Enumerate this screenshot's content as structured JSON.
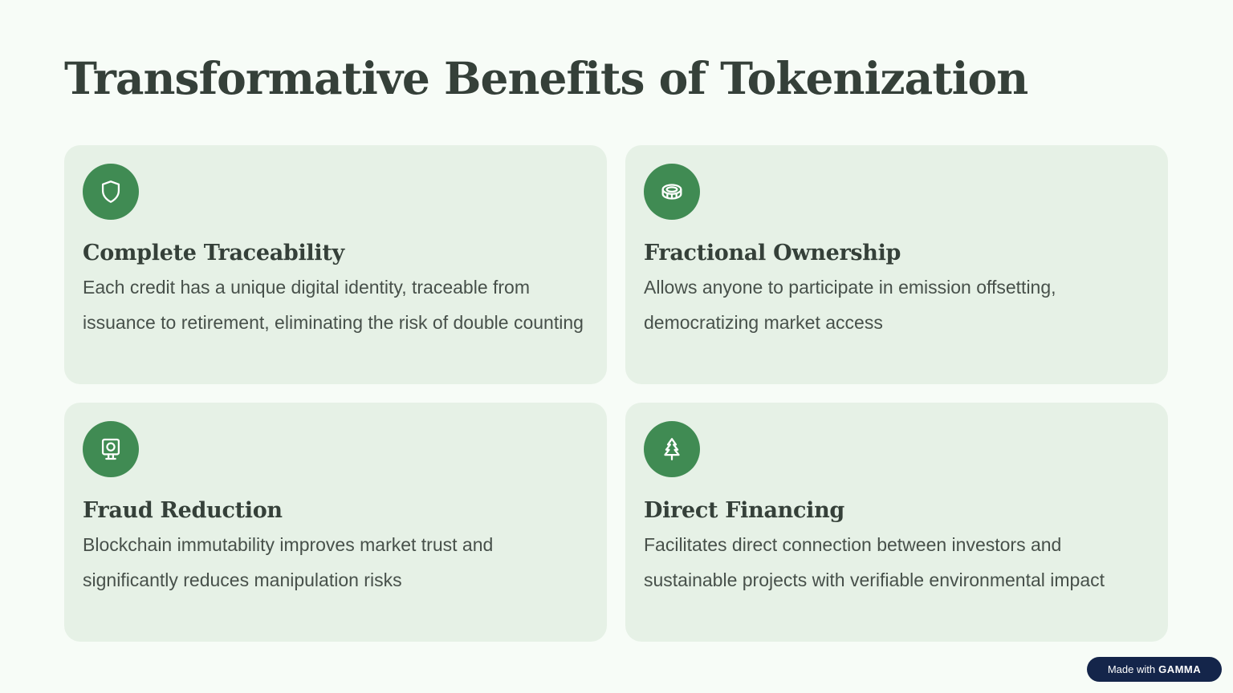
{
  "page": {
    "title": "Transformative Benefits of Tokenization"
  },
  "cards": [
    {
      "icon": "shield-icon",
      "title": "Complete Traceability",
      "text": "Each credit has a unique digital identity, traceable from issuance to retirement, eliminating the risk of double counting"
    },
    {
      "icon": "coin-icon",
      "title": "Fractional Ownership",
      "text": "Allows anyone to participate in emission offsetting, democratizing market access"
    },
    {
      "icon": "monitor-icon",
      "title": "Fraud Reduction",
      "text": "Blockchain immutability improves market trust and significantly reduces manipulation risks"
    },
    {
      "icon": "tree-icon",
      "title": "Direct Financing",
      "text": "Facilitates direct connection between investors and sustainable projects with verifiable environmental impact"
    }
  ],
  "badge": {
    "prefix": "Made with",
    "brand": "GAMMA"
  },
  "colors": {
    "background": "#f7fcf7",
    "card": "#e6f1e6",
    "accent": "#408b53",
    "title": "#354039",
    "badge": "#14254a"
  }
}
